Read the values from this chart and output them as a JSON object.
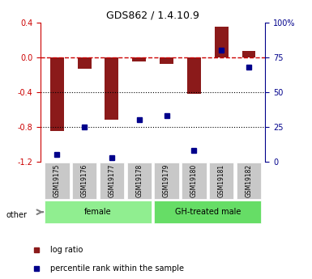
{
  "title": "GDS862 / 1.4.10.9",
  "samples": [
    "GSM19175",
    "GSM19176",
    "GSM19177",
    "GSM19178",
    "GSM19179",
    "GSM19180",
    "GSM19181",
    "GSM19182"
  ],
  "log_ratio": [
    -0.85,
    -0.13,
    -0.72,
    -0.05,
    -0.08,
    -0.42,
    0.35,
    0.07
  ],
  "percentile_rank": [
    5,
    25,
    3,
    30,
    33,
    8,
    80,
    68
  ],
  "ylim_left": [
    -1.2,
    0.4
  ],
  "ylim_right": [
    0,
    100
  ],
  "yticks_left": [
    -1.2,
    -0.8,
    -0.4,
    0.0,
    0.4
  ],
  "yticks_right": [
    0,
    25,
    50,
    75,
    100
  ],
  "ytick_right_labels": [
    "0",
    "25",
    "50",
    "75",
    "100%"
  ],
  "bar_color": "#8B1A1A",
  "dot_color": "#00008B",
  "hline_color": "#CC0000",
  "dotline_color": "#000000",
  "group_labels": [
    "female",
    "GH-treated male"
  ],
  "group_colors": [
    "#90EE90",
    "#66DD66"
  ],
  "label_box_color": "#C8C8C8",
  "legend_items": [
    "log ratio",
    "percentile rank within the sample"
  ],
  "other_label": "other"
}
